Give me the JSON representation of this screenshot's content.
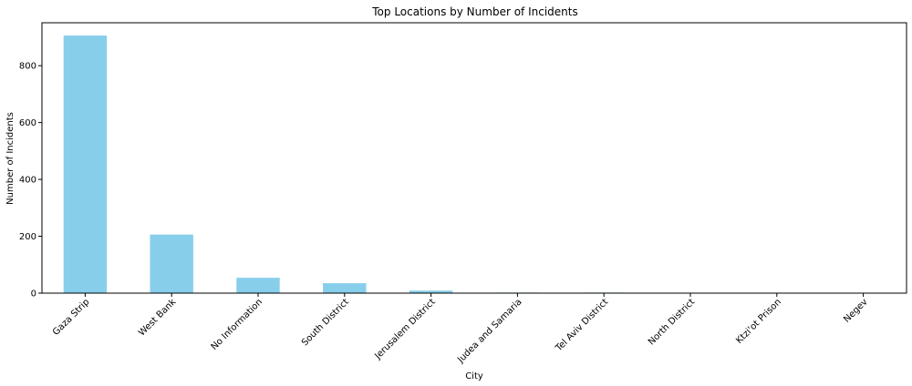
{
  "chart_data": {
    "type": "bar",
    "title": "Top Locations by Number of Incidents",
    "xlabel": "City",
    "ylabel": "Number of Incidents",
    "categories": [
      "Gaza Strip",
      "West Bank",
      "No Information",
      "South District",
      "Jerusalem District",
      "Judea and Samaria",
      "Tel Aviv District",
      "North District",
      "Ktzi'ot Prison",
      "Negev"
    ],
    "values": [
      906,
      206,
      54,
      35,
      9,
      2,
      2,
      1,
      1,
      1
    ],
    "ylim": [
      0,
      951
    ],
    "yticks": [
      0,
      200,
      400,
      600,
      800
    ],
    "bar_color": "#87ceeb",
    "grid": false,
    "legend": "none"
  }
}
